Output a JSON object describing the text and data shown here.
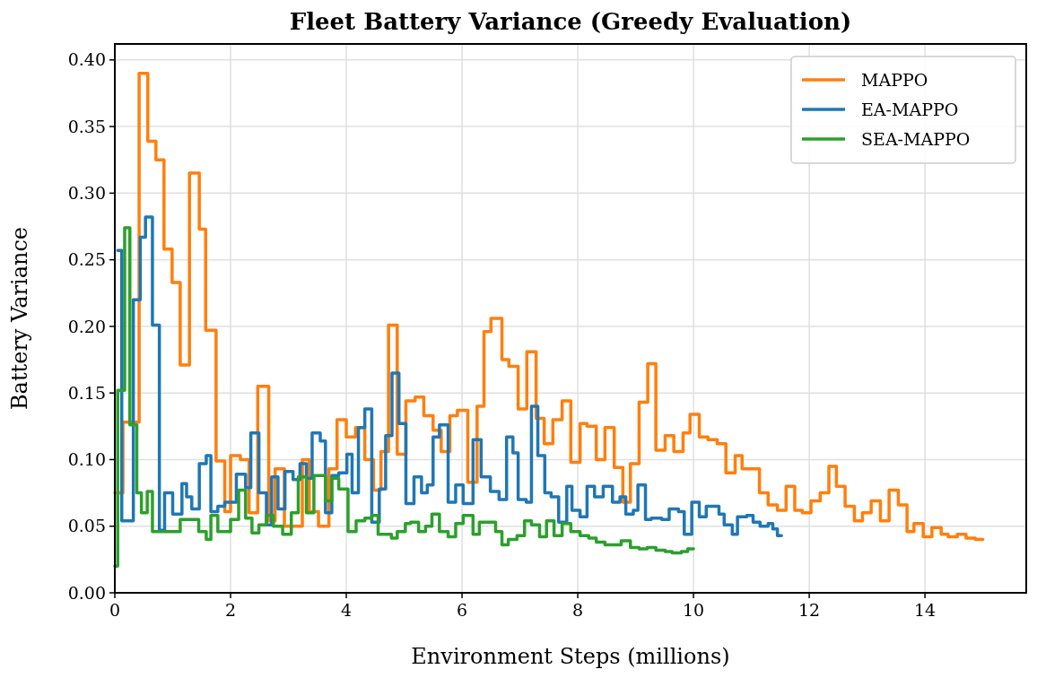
{
  "chart_data": {
    "type": "step",
    "title": "Fleet Battery Variance (Greedy Evaluation)",
    "xlabel": "Environment Steps (millions)",
    "ylabel": "Battery Variance",
    "xlim": [
      0,
      15.75
    ],
    "ylim": [
      0,
      0.412
    ],
    "xticks": [
      0,
      2,
      4,
      6,
      8,
      10,
      12,
      14
    ],
    "yticks": [
      {
        "value": 0,
        "label": "0.00"
      },
      {
        "value": 0.05,
        "label": "0.05"
      },
      {
        "value": 0.1,
        "label": "0.10"
      },
      {
        "value": 0.15,
        "label": "0.15"
      },
      {
        "value": 0.2,
        "label": "0.20"
      },
      {
        "value": 0.25,
        "label": "0.25"
      },
      {
        "value": 0.3,
        "label": "0.30"
      },
      {
        "value": 0.35,
        "label": "0.35"
      },
      {
        "value": 0.4,
        "label": "0.40"
      }
    ],
    "grid": true,
    "legend": "top right",
    "series": [
      {
        "name": "MAPPO",
        "color": "#ff7f0e",
        "x": [
          0,
          0.14,
          0.42,
          0.57,
          0.71,
          0.85,
          0.99,
          1.13,
          1.29,
          1.46,
          1.57,
          1.75,
          1.9,
          2.0,
          2.17,
          2.32,
          2.47,
          2.66,
          2.77,
          2.93,
          3.24,
          3.36,
          3.52,
          3.7,
          3.84,
          4.0,
          4.16,
          4.32,
          4.47,
          4.6,
          4.73,
          4.88,
          5.03,
          5.19,
          5.34,
          5.5,
          5.64,
          5.79,
          5.92,
          6.1,
          6.26,
          6.38,
          6.5,
          6.69,
          6.81,
          6.97,
          7.12,
          7.28,
          7.42,
          7.57,
          7.73,
          7.88,
          8.04,
          8.16,
          8.32,
          8.47,
          8.63,
          8.78,
          8.91,
          9.06,
          9.21,
          9.35,
          9.51,
          9.66,
          9.82,
          9.94,
          10.1,
          10.25,
          10.41,
          10.56,
          10.72,
          10.84,
          11.14,
          11.29,
          11.45,
          11.6,
          11.75,
          11.88,
          12.03,
          12.19,
          12.34,
          12.47,
          12.62,
          12.78,
          12.92,
          13.07,
          13.23,
          13.38,
          13.54,
          13.69,
          13.81,
          13.97,
          14.12,
          14.28,
          14.4,
          14.56,
          14.71,
          14.87,
          15.0
        ],
        "values": [
          0.075,
          0.128,
          0.39,
          0.339,
          0.325,
          0.258,
          0.233,
          0.171,
          0.315,
          0.273,
          0.197,
          0.099,
          0.061,
          0.103,
          0.1,
          0.06,
          0.155,
          0.054,
          0.093,
          0.05,
          0.1,
          0.061,
          0.05,
          0.093,
          0.13,
          0.117,
          0.124,
          0.1,
          0.077,
          0.106,
          0.201,
          0.104,
          0.144,
          0.147,
          0.133,
          0.122,
          0.106,
          0.133,
          0.137,
          0.083,
          0.14,
          0.196,
          0.206,
          0.175,
          0.17,
          0.138,
          0.181,
          0.131,
          0.112,
          0.13,
          0.144,
          0.098,
          0.127,
          0.125,
          0.1,
          0.124,
          0.094,
          0.068,
          0.097,
          0.143,
          0.172,
          0.107,
          0.118,
          0.106,
          0.12,
          0.134,
          0.117,
          0.115,
          0.112,
          0.09,
          0.103,
          0.093,
          0.075,
          0.066,
          0.062,
          0.08,
          0.062,
          0.06,
          0.069,
          0.075,
          0.095,
          0.08,
          0.065,
          0.054,
          0.06,
          0.069,
          0.054,
          0.077,
          0.066,
          0.046,
          0.052,
          0.042,
          0.049,
          0.044,
          0.042,
          0.044,
          0.041,
          0.04,
          0.04
        ]
      },
      {
        "name": "EA-MAPPO",
        "color": "#1f77b4",
        "x": [
          0.05,
          0.12,
          0.32,
          0.44,
          0.53,
          0.65,
          0.77,
          0.86,
          1.0,
          1.16,
          1.24,
          1.33,
          1.46,
          1.58,
          1.66,
          1.78,
          1.9,
          2.1,
          2.26,
          2.35,
          2.49,
          2.62,
          2.71,
          2.82,
          2.94,
          3.08,
          3.2,
          3.31,
          3.41,
          3.55,
          3.64,
          3.75,
          3.87,
          4.01,
          4.1,
          4.21,
          4.32,
          4.44,
          4.57,
          4.68,
          4.79,
          4.91,
          5.03,
          5.17,
          5.3,
          5.4,
          5.5,
          5.61,
          5.76,
          5.89,
          6.02,
          6.19,
          6.33,
          6.49,
          6.64,
          6.77,
          6.88,
          6.97,
          7.11,
          7.2,
          7.31,
          7.43,
          7.54,
          7.67,
          7.81,
          7.9,
          8.04,
          8.16,
          8.29,
          8.44,
          8.6,
          8.73,
          8.83,
          8.96,
          9.04,
          9.17,
          9.27,
          9.45,
          9.58,
          9.74,
          9.84,
          9.97,
          10.1,
          10.22,
          10.44,
          10.53,
          10.67,
          10.76,
          10.92,
          11.03,
          11.15,
          11.29,
          11.37,
          11.45,
          11.52
        ],
        "values": [
          0.257,
          0.054,
          0.22,
          0.267,
          0.282,
          0.201,
          0.047,
          0.075,
          0.059,
          0.082,
          0.072,
          0.063,
          0.097,
          0.103,
          0.061,
          0.065,
          0.068,
          0.089,
          0.079,
          0.12,
          0.075,
          0.051,
          0.087,
          0.063,
          0.091,
          0.085,
          0.097,
          0.086,
          0.12,
          0.114,
          0.06,
          0.088,
          0.09,
          0.104,
          0.075,
          0.124,
          0.138,
          0.053,
          0.078,
          0.118,
          0.165,
          0.127,
          0.067,
          0.087,
          0.075,
          0.081,
          0.117,
          0.126,
          0.068,
          0.081,
          0.067,
          0.115,
          0.087,
          0.076,
          0.07,
          0.117,
          0.105,
          0.07,
          0.068,
          0.14,
          0.103,
          0.075,
          0.072,
          0.053,
          0.08,
          0.062,
          0.057,
          0.08,
          0.072,
          0.08,
          0.068,
          0.072,
          0.059,
          0.062,
          0.081,
          0.055,
          0.056,
          0.055,
          0.063,
          0.061,
          0.044,
          0.068,
          0.057,
          0.065,
          0.059,
          0.051,
          0.044,
          0.057,
          0.058,
          0.053,
          0.05,
          0.052,
          0.048,
          0.043,
          0.043
        ]
      },
      {
        "name": "SEA-MAPPO",
        "color": "#2ca02c",
        "x": [
          0,
          0.05,
          0.17,
          0.26,
          0.38,
          0.46,
          0.56,
          0.65,
          1.13,
          1.45,
          1.58,
          1.66,
          1.78,
          2.0,
          2.14,
          2.26,
          2.37,
          2.49,
          2.62,
          2.74,
          2.9,
          3.05,
          3.17,
          3.31,
          3.44,
          3.64,
          3.75,
          3.87,
          4.03,
          4.17,
          4.32,
          4.44,
          4.55,
          4.78,
          4.88,
          5.02,
          5.11,
          5.25,
          5.37,
          5.48,
          5.61,
          5.76,
          5.89,
          6.02,
          6.19,
          6.3,
          6.58,
          6.69,
          6.8,
          6.95,
          7.08,
          7.2,
          7.34,
          7.46,
          7.59,
          7.73,
          7.88,
          8.04,
          8.19,
          8.32,
          8.47,
          8.75,
          8.91,
          9.06,
          9.2,
          9.35,
          9.51,
          9.63,
          9.79,
          9.9,
          10.0
        ],
        "values": [
          0.02,
          0.152,
          0.274,
          0.126,
          0.075,
          0.06,
          0.076,
          0.046,
          0.055,
          0.046,
          0.04,
          0.058,
          0.046,
          0.055,
          0.077,
          0.056,
          0.045,
          0.051,
          0.058,
          0.05,
          0.044,
          0.06,
          0.087,
          0.06,
          0.088,
          0.069,
          0.086,
          0.078,
          0.046,
          0.054,
          0.056,
          0.058,
          0.044,
          0.041,
          0.046,
          0.052,
          0.053,
          0.046,
          0.05,
          0.059,
          0.046,
          0.042,
          0.052,
          0.058,
          0.044,
          0.053,
          0.046,
          0.036,
          0.04,
          0.043,
          0.054,
          0.051,
          0.042,
          0.054,
          0.043,
          0.052,
          0.046,
          0.043,
          0.041,
          0.038,
          0.036,
          0.039,
          0.034,
          0.033,
          0.034,
          0.032,
          0.031,
          0.03,
          0.031,
          0.033,
          0.033
        ]
      }
    ]
  }
}
